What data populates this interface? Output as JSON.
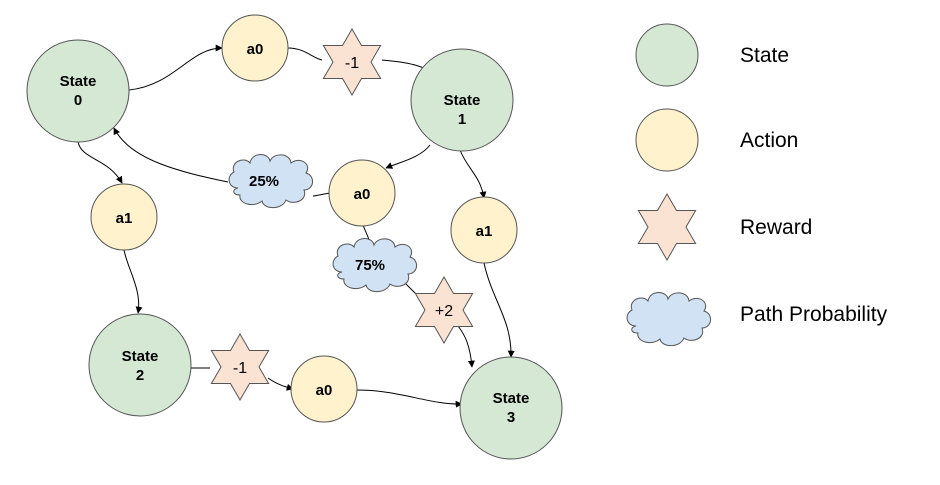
{
  "colors": {
    "state_fill": "#d5e8d4",
    "action_fill": "#fff2cc",
    "reward_fill": "#fbe3d3",
    "probability_fill": "#d0e2f3",
    "outline": "#555555",
    "edge": "#000000"
  },
  "nodes": {
    "state0": [
      "State",
      "0"
    ],
    "state1": [
      "State",
      "1"
    ],
    "state2": [
      "State",
      "2"
    ],
    "state3": [
      "State",
      "3"
    ],
    "action_s0_a0": "a0",
    "action_s0_a1": "a1",
    "action_s1_a0": "a0",
    "action_s1_a1": "a1",
    "action_s2_a0": "a0",
    "reward_top": "-1",
    "reward_mid": "+2",
    "reward_bottom": "-1",
    "prob_25": "25%",
    "prob_75": "75%"
  },
  "legend": {
    "state": "State",
    "action": "Action",
    "reward": "Reward",
    "probability": "Path Probability"
  }
}
